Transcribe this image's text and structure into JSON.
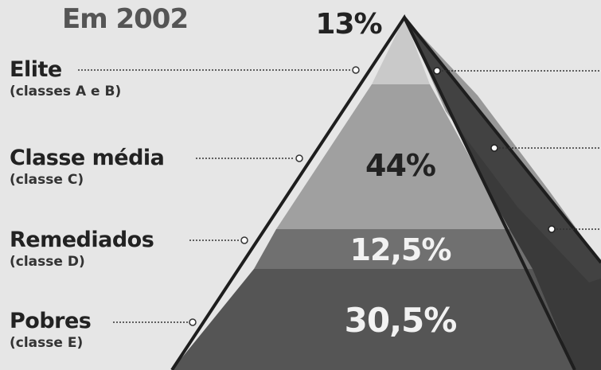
{
  "title": "Em 2002",
  "colors": {
    "background": "#e6e6e6",
    "elite": "#c9c9c9",
    "media": "#9d9d9d",
    "remediados": "#6f6f6f",
    "pobres": "#555555",
    "side": "#3a3a3a",
    "text_dark": "#222222",
    "text_light": "#f2f2f2"
  },
  "classes": [
    {
      "name": "Elite",
      "sub_prefix": "(classes ",
      "sub_letter_a": "A",
      "sub_mid": " e ",
      "sub_letter_b": "B",
      "sub_suffix": ")",
      "percent": "13%",
      "value": 13
    },
    {
      "name": "Classe média",
      "sub_prefix": "(classe ",
      "sub_letter_a": "C",
      "sub_suffix": ")",
      "percent": "44%",
      "value": 44
    },
    {
      "name": "Remediados",
      "sub_prefix": "(classe ",
      "sub_letter_a": "D",
      "sub_suffix": ")",
      "percent": "12,5%",
      "value": 12.5
    },
    {
      "name": "Pobres",
      "sub_prefix": "(classe ",
      "sub_letter_a": "E",
      "sub_suffix": ")",
      "percent": "30,5%",
      "value": 30.5
    }
  ]
}
